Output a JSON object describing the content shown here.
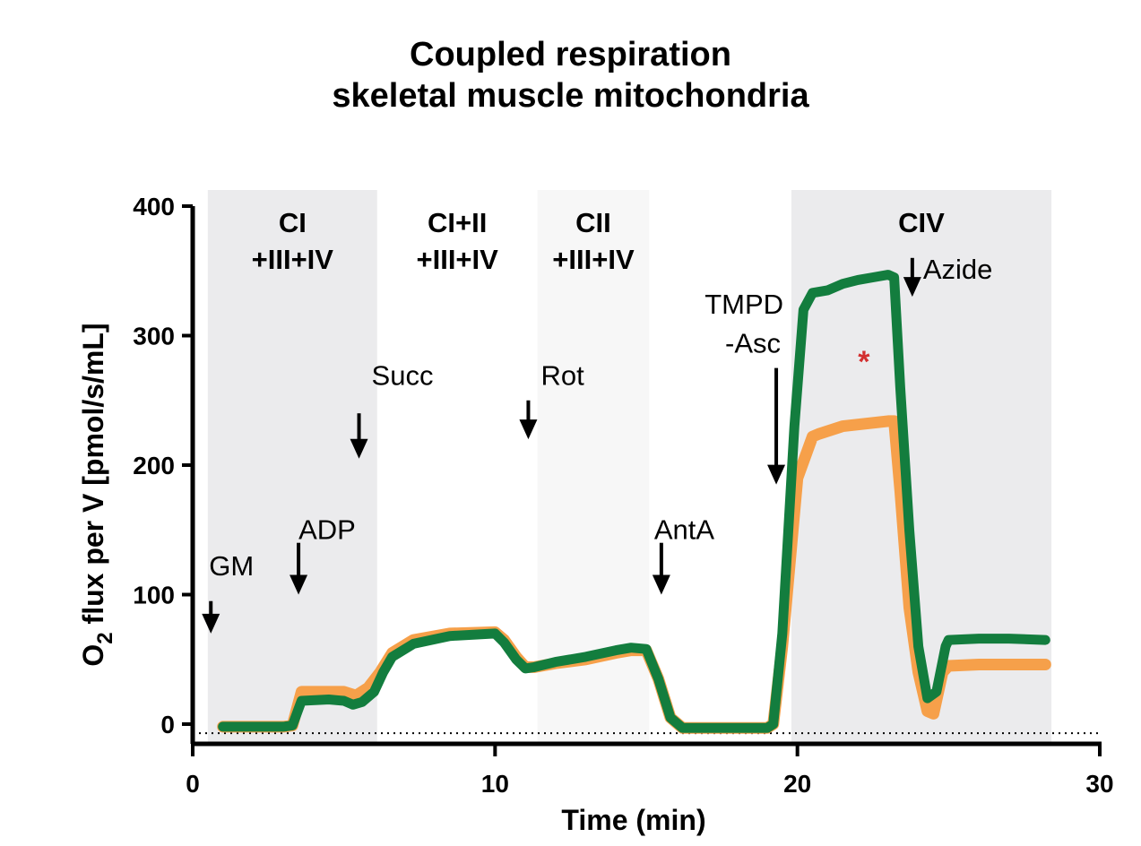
{
  "title_line1": "Coupled respiration",
  "title_line2": "skeletal muscle mitochondria",
  "chart_data": {
    "type": "line",
    "xlabel": "Time  (min)",
    "ylabel_main": "O",
    "ylabel_sub": "2",
    "ylabel_rest": " flux per V [pmol/s/mL]",
    "xlim": [
      0,
      30
    ],
    "ylim": [
      -15,
      400
    ],
    "xticks": [
      0,
      10,
      20,
      30
    ],
    "yticks": [
      0,
      100,
      200,
      300,
      400
    ],
    "baseline_dotted_y": -7,
    "regions": [
      {
        "x0": 0.5,
        "x1": 6.1,
        "label1": "CI",
        "label2": "+III+IV",
        "color": "#ebebed"
      },
      {
        "x0": 6.1,
        "x1": 11.4,
        "label1": "CI+II",
        "label2": "+III+IV",
        "color": "#ffffff"
      },
      {
        "x0": 11.4,
        "x1": 15.1,
        "label1": "CII",
        "label2": "+III+IV",
        "color": "#f7f7f7"
      },
      {
        "x0": 19.8,
        "x1": 28.4,
        "label1": "CIV",
        "label2": "",
        "color": "#ebebed"
      }
    ],
    "annotations": [
      {
        "label": "GM",
        "x": 0.6,
        "y_text": 115,
        "arrow_top": 95,
        "arrow_bottom": 70
      },
      {
        "label": "ADP",
        "x": 3.5,
        "y_text": 143,
        "arrow_top": 140,
        "arrow_bottom": 100
      },
      {
        "label": "Succ",
        "x": 5.5,
        "y_text": 262,
        "arrow_top": 240,
        "arrow_bottom": 205
      },
      {
        "label": "Rot",
        "x": 11.1,
        "y_text": 262,
        "arrow_top": 250,
        "arrow_bottom": 220
      },
      {
        "label": "AntA",
        "x": 15.5,
        "y_text": 143,
        "arrow_top": 140,
        "arrow_bottom": 100
      },
      {
        "label": "TMPD",
        "x": 19.3,
        "y_text": 317,
        "arrow_top": 275,
        "arrow_bottom": 185
      },
      {
        "label": "-Asc",
        "x": 19.3,
        "y_text": 287,
        "arrow_top": null,
        "arrow_bottom": null
      },
      {
        "label": "Azide",
        "x": 23.8,
        "y_text": 344,
        "arrow_top": 360,
        "arrow_bottom": 330
      }
    ],
    "significance_marker": {
      "label": "*",
      "x": 22.2,
      "y": 272,
      "color": "#d32f2f"
    },
    "series": [
      {
        "color": "#f6a04a",
        "x": [
          1.0,
          3.0,
          3.3,
          3.6,
          5.0,
          5.4,
          5.8,
          6.2,
          6.6,
          7.3,
          8.5,
          10.0,
          10.3,
          10.7,
          11.0,
          11.3,
          12.0,
          13.0,
          14.0,
          14.5,
          15.0,
          15.4,
          15.8,
          16.2,
          16.5,
          18.0,
          19.0,
          19.2,
          19.5,
          20.0,
          20.5,
          20.7,
          21.5,
          23.0,
          23.2,
          23.4,
          23.7,
          24.0,
          24.3,
          24.5,
          24.8,
          25.0,
          26.0,
          27.0,
          28.2
        ],
        "y": [
          -2,
          -2,
          -1,
          25,
          25,
          22,
          28,
          40,
          55,
          65,
          70,
          71,
          65,
          52,
          44,
          44,
          47,
          50,
          55,
          57,
          57,
          35,
          5,
          -3,
          -3,
          -3,
          -3,
          0,
          60,
          190,
          222,
          224,
          230,
          234,
          234,
          180,
          90,
          40,
          10,
          8,
          40,
          45,
          46,
          46,
          46
        ]
      },
      {
        "color": "#137d3e",
        "x": [
          1.0,
          3.0,
          3.3,
          3.6,
          4.5,
          5.0,
          5.3,
          5.6,
          6.0,
          6.3,
          6.6,
          7.3,
          8.5,
          10.0,
          10.3,
          10.7,
          11.0,
          11.3,
          12.0,
          13.0,
          14.0,
          14.5,
          15.0,
          15.4,
          15.8,
          16.2,
          16.5,
          18.0,
          19.0,
          19.2,
          19.5,
          19.9,
          20.2,
          20.5,
          21.0,
          21.5,
          22.0,
          22.5,
          23.0,
          23.2,
          23.4,
          23.7,
          24.0,
          24.3,
          24.6,
          24.9,
          25.0,
          26.0,
          27.0,
          28.2
        ],
        "y": [
          -2,
          -2,
          -1,
          18,
          19,
          18,
          15,
          17,
          25,
          40,
          52,
          62,
          68,
          70,
          63,
          50,
          43,
          44,
          48,
          52,
          57,
          59,
          58,
          35,
          5,
          -3,
          -3,
          -3,
          -3,
          0,
          70,
          230,
          320,
          333,
          335,
          340,
          343,
          345,
          347,
          345,
          260,
          150,
          60,
          20,
          25,
          60,
          65,
          66,
          66,
          65
        ]
      }
    ]
  }
}
